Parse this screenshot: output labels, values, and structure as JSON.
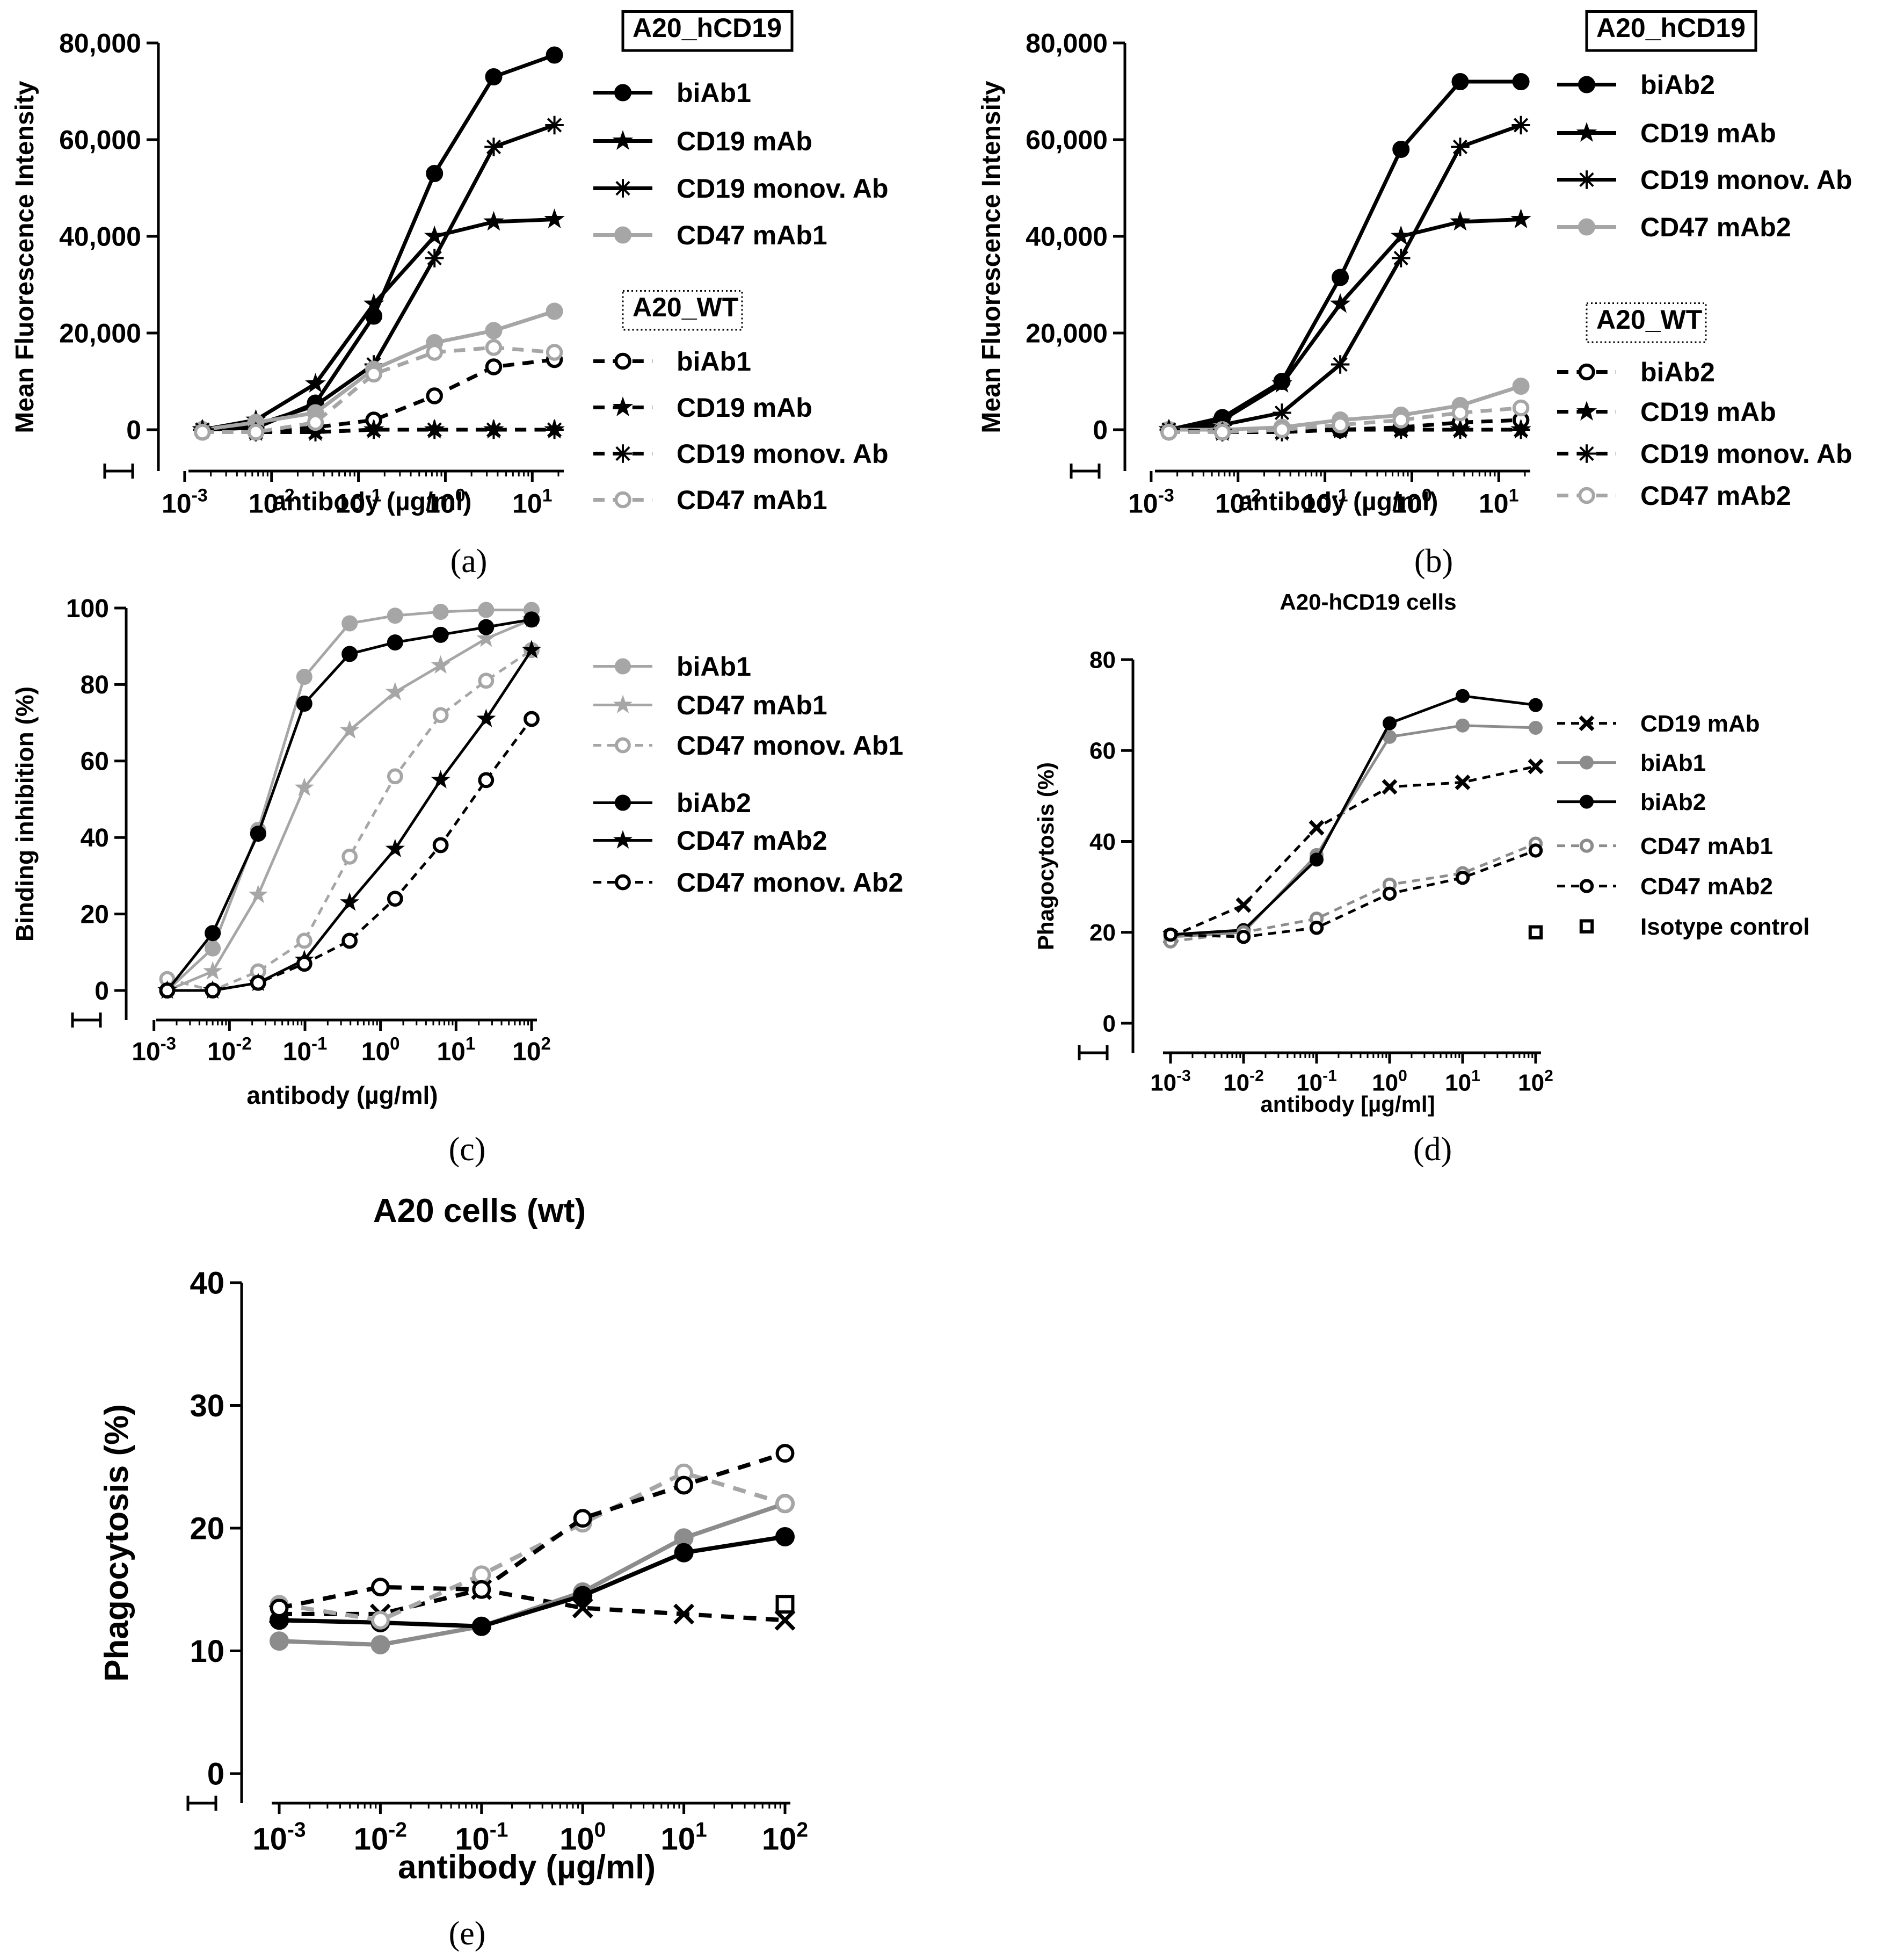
{
  "colors": {
    "black": "#000000",
    "gray": "#a6a6a6",
    "midgray": "#8c8c8c"
  },
  "chart_data": [
    {
      "panel": "a",
      "letter": "(a)",
      "type": "line",
      "xscale": "log",
      "xlabel": "antibody (µg/ml)",
      "ylabel": "Mean Fluorescence Intensity",
      "ylim": [
        0,
        80000
      ],
      "yticks": [
        "0",
        "20,000",
        "40,000",
        "60,000",
        "80,000"
      ],
      "xticks": [
        "10^-3",
        "10^-2",
        "10^-1",
        "10^0",
        "10^1"
      ],
      "legend_groups": [
        {
          "title": "A20_hCD19",
          "box": "solid"
        },
        {
          "title": "A20_WT",
          "box": "dotted"
        }
      ],
      "series": [
        {
          "name": "biAb1",
          "group": 0,
          "color": "black",
          "dash": false,
          "marker": "filled",
          "x": [
            0.0016,
            0.0066,
            0.032,
            0.15,
            0.75,
            3.6,
            18
          ],
          "values": [
            0,
            400,
            5500,
            23500,
            53000,
            73000,
            77500
          ]
        },
        {
          "name": "CD19 mAb",
          "group": 0,
          "color": "black",
          "dash": false,
          "marker": "star",
          "x": [
            0.0016,
            0.0066,
            0.032,
            0.15,
            0.75,
            3.6,
            18
          ],
          "values": [
            0,
            2000,
            9500,
            26000,
            40000,
            43000,
            43500
          ]
        },
        {
          "name": "CD19 monov. Ab",
          "group": 0,
          "color": "black",
          "dash": false,
          "marker": "asterisk",
          "x": [
            0.0016,
            0.0066,
            0.032,
            0.15,
            0.75,
            3.6,
            18
          ],
          "values": [
            0,
            1000,
            5000,
            13500,
            35500,
            58500,
            63000
          ]
        },
        {
          "name": "CD47 mAb1",
          "group": 0,
          "color": "gray",
          "dash": false,
          "marker": "filled",
          "x": [
            0.0016,
            0.0066,
            0.032,
            0.15,
            0.75,
            3.6,
            18
          ],
          "values": [
            0,
            1500,
            3500,
            12500,
            18000,
            20500,
            24500
          ]
        },
        {
          "name": "biAb1",
          "group": 1,
          "color": "black",
          "dash": true,
          "marker": "open",
          "x": [
            0.0016,
            0.0066,
            0.032,
            0.15,
            0.75,
            3.6,
            18
          ],
          "values": [
            -500,
            -500,
            500,
            2000,
            7000,
            13000,
            14500
          ]
        },
        {
          "name": "CD19 mAb",
          "group": 1,
          "color": "black",
          "dash": true,
          "marker": "star",
          "x": [
            0.0016,
            0.0066,
            0.032,
            0.15,
            0.75,
            3.6,
            18
          ],
          "values": [
            0,
            -500,
            -500,
            0,
            0,
            0,
            0
          ]
        },
        {
          "name": "CD19 monov. Ab",
          "group": 1,
          "color": "black",
          "dash": true,
          "marker": "asterisk",
          "x": [
            0.0016,
            0.0066,
            0.032,
            0.15,
            0.75,
            3.6,
            18
          ],
          "values": [
            0,
            -500,
            -500,
            0,
            0,
            0,
            0
          ]
        },
        {
          "name": "CD47 mAb1",
          "group": 1,
          "color": "gray",
          "dash": true,
          "marker": "open",
          "x": [
            0.0016,
            0.0066,
            0.032,
            0.15,
            0.75,
            3.6,
            18
          ],
          "values": [
            -500,
            -500,
            1500,
            11500,
            16000,
            17000,
            16000
          ]
        }
      ]
    },
    {
      "panel": "b",
      "letter": "(b)",
      "type": "line",
      "xscale": "log",
      "xlabel": "antibody (µg/ml)",
      "ylabel": "Mean Fluorescence Intensity",
      "ylim": [
        0,
        80000
      ],
      "yticks": [
        "0",
        "20,000",
        "40,000",
        "60,000",
        "80,000"
      ],
      "xticks": [
        "10^-3",
        "10^-2",
        "10^-1",
        "10^0",
        "10^1"
      ],
      "legend_groups": [
        {
          "title": "A20_hCD19",
          "box": "solid"
        },
        {
          "title": "A20_WT",
          "box": "dotted"
        }
      ],
      "series": [
        {
          "name": "biAb2",
          "group": 0,
          "color": "black",
          "dash": false,
          "marker": "filled",
          "x": [
            0.0016,
            0.0066,
            0.032,
            0.15,
            0.75,
            3.6,
            18
          ],
          "values": [
            0,
            2500,
            10000,
            31500,
            58000,
            72000,
            72000
          ]
        },
        {
          "name": "CD19 mAb",
          "group": 0,
          "color": "black",
          "dash": false,
          "marker": "star",
          "x": [
            0.0016,
            0.0066,
            0.032,
            0.15,
            0.75,
            3.6,
            18
          ],
          "values": [
            0,
            2000,
            9500,
            26000,
            40000,
            43000,
            43500
          ]
        },
        {
          "name": "CD19 monov. Ab",
          "group": 0,
          "color": "black",
          "dash": false,
          "marker": "asterisk",
          "x": [
            0.0016,
            0.0066,
            0.032,
            0.15,
            0.75,
            3.6,
            18
          ],
          "values": [
            0,
            1000,
            3500,
            13500,
            35500,
            58500,
            63000
          ]
        },
        {
          "name": "CD47 mAb2",
          "group": 0,
          "color": "gray",
          "dash": false,
          "marker": "filled",
          "x": [
            0.0016,
            0.0066,
            0.032,
            0.15,
            0.75,
            3.6,
            18
          ],
          "values": [
            0,
            0,
            500,
            2000,
            3000,
            5000,
            9000
          ]
        },
        {
          "name": "biAb2",
          "group": 1,
          "color": "black",
          "dash": true,
          "marker": "open",
          "x": [
            0.0016,
            0.0066,
            0.032,
            0.15,
            0.75,
            3.6,
            18
          ],
          "values": [
            -500,
            -500,
            0,
            0,
            500,
            1500,
            2000
          ]
        },
        {
          "name": "CD19 mAb",
          "group": 1,
          "color": "black",
          "dash": true,
          "marker": "star",
          "x": [
            0.0016,
            0.0066,
            0.032,
            0.15,
            0.75,
            3.6,
            18
          ],
          "values": [
            0,
            -500,
            -500,
            0,
            0,
            0,
            0
          ]
        },
        {
          "name": "CD19 monov. Ab",
          "group": 1,
          "color": "black",
          "dash": true,
          "marker": "asterisk",
          "x": [
            0.0016,
            0.0066,
            0.032,
            0.15,
            0.75,
            3.6,
            18
          ],
          "values": [
            0,
            -500,
            -500,
            0,
            0,
            0,
            0
          ]
        },
        {
          "name": "CD47 mAb2",
          "group": 1,
          "color": "gray",
          "dash": true,
          "marker": "open",
          "x": [
            0.0016,
            0.0066,
            0.032,
            0.15,
            0.75,
            3.6,
            18
          ],
          "values": [
            -500,
            -500,
            0,
            1000,
            2000,
            3500,
            4500
          ]
        }
      ]
    },
    {
      "panel": "c",
      "letter": "(c)",
      "type": "line",
      "xscale": "log",
      "xlabel": "antibody (µg/ml)",
      "ylabel": "Binding inhibition (%)",
      "ylim": [
        0,
        100
      ],
      "yticks": [
        "0",
        "20",
        "40",
        "60",
        "80",
        "100"
      ],
      "xticks": [
        "10^-3",
        "10^-2",
        "10^-1",
        "10^0",
        "10^1",
        "10^2"
      ],
      "legend_groups": [],
      "series": [
        {
          "name": "biAb1",
          "group": 0,
          "color": "gray",
          "dash": false,
          "marker": "filled",
          "x": [
            0.0015,
            0.006,
            0.024,
            0.098,
            0.39,
            1.56,
            6.25,
            25,
            100
          ],
          "values": [
            0,
            11,
            42,
            82,
            96,
            98,
            99,
            99.5,
            99.5
          ]
        },
        {
          "name": "CD47 mAb1",
          "group": 0,
          "color": "gray",
          "dash": false,
          "marker": "star",
          "x": [
            0.0015,
            0.006,
            0.024,
            0.098,
            0.39,
            1.56,
            6.25,
            25,
            100
          ],
          "values": [
            0,
            5,
            25,
            53,
            68,
            78,
            85,
            92,
            97
          ]
        },
        {
          "name": "CD47 monov. Ab1",
          "group": 0,
          "color": "gray",
          "dash": true,
          "marker": "open",
          "x": [
            0.0015,
            0.006,
            0.024,
            0.098,
            0.39,
            1.56,
            6.25,
            25,
            100
          ],
          "values": [
            3,
            0,
            5,
            13,
            35,
            56,
            72,
            81,
            89
          ]
        },
        {
          "name": "biAb2",
          "group": 1,
          "color": "black",
          "dash": false,
          "marker": "filled",
          "x": [
            0.0015,
            0.006,
            0.024,
            0.098,
            0.39,
            1.56,
            6.25,
            25,
            100
          ],
          "values": [
            0,
            15,
            41,
            75,
            88,
            91,
            93,
            95,
            97
          ]
        },
        {
          "name": "CD47 mAb2",
          "group": 1,
          "color": "black",
          "dash": false,
          "marker": "star",
          "x": [
            0.0015,
            0.006,
            0.024,
            0.098,
            0.39,
            1.56,
            6.25,
            25,
            100
          ],
          "values": [
            0,
            0,
            2,
            8,
            23,
            37,
            55,
            71,
            89
          ]
        },
        {
          "name": "CD47 monov. Ab2",
          "group": 1,
          "color": "black",
          "dash": true,
          "marker": "open",
          "x": [
            0.0015,
            0.006,
            0.024,
            0.098,
            0.39,
            1.56,
            6.25,
            25,
            100
          ],
          "values": [
            0,
            0,
            2,
            7,
            13,
            24,
            38,
            55,
            71
          ]
        }
      ]
    },
    {
      "panel": "d",
      "letter": "(d)",
      "type": "line",
      "xscale": "log",
      "title": "A20-hCD19 cells",
      "xlabel": "antibody [µg/ml]",
      "ylabel": "Phagocytosis (%)",
      "ylim": [
        0,
        80
      ],
      "yticks": [
        "0",
        "20",
        "40",
        "60",
        "80"
      ],
      "xticks": [
        "10^-3",
        "10^-2",
        "10^-1",
        "10^0",
        "10^1",
        "10^2"
      ],
      "legend_groups": [],
      "series": [
        {
          "name": "CD19 mAb",
          "color": "black",
          "dash": true,
          "marker": "x",
          "x": [
            0.001,
            0.01,
            0.1,
            1,
            10,
            100
          ],
          "values": [
            19,
            26,
            43,
            52,
            53,
            56.5
          ]
        },
        {
          "name": "biAb1",
          "color": "midgray",
          "dash": false,
          "marker": "filled",
          "x": [
            0.001,
            0.01,
            0.1,
            1,
            10,
            100
          ],
          "values": [
            19,
            20,
            37,
            63,
            65.5,
            65
          ]
        },
        {
          "name": "biAb2",
          "color": "black",
          "dash": false,
          "marker": "filled",
          "x": [
            0.001,
            0.01,
            0.1,
            1,
            10,
            100
          ],
          "values": [
            19.5,
            20.5,
            36,
            66,
            72,
            70
          ]
        },
        {
          "name": "CD47 mAb1",
          "color": "midgray",
          "dash": true,
          "marker": "open",
          "x": [
            0.001,
            0.01,
            0.1,
            1,
            10,
            100
          ],
          "values": [
            18,
            20,
            23,
            30.5,
            33,
            39.5
          ]
        },
        {
          "name": "CD47 mAb2",
          "color": "black",
          "dash": true,
          "marker": "open",
          "x": [
            0.001,
            0.01,
            0.1,
            1,
            10,
            100
          ],
          "values": [
            19.5,
            19,
            21,
            28.5,
            32,
            38
          ]
        },
        {
          "name": "Isotype control",
          "color": "black",
          "dash": false,
          "marker": "square",
          "x": [
            100
          ],
          "values": [
            20
          ]
        }
      ]
    },
    {
      "panel": "e",
      "letter": "(e)",
      "type": "line",
      "xscale": "log",
      "title": "A20 cells (wt)",
      "xlabel": "antibody (µg/ml)",
      "ylabel": "Phagocytosis (%)",
      "ylim": [
        0,
        40
      ],
      "yticks": [
        "0",
        "10",
        "20",
        "30",
        "40"
      ],
      "xticks": [
        "10^-3",
        "10^-2",
        "10^-1",
        "10^0",
        "10^1",
        "10^2"
      ],
      "legend_groups": [],
      "series": [
        {
          "name": "CD19 mAb",
          "color": "black",
          "dash": true,
          "marker": "x",
          "x": [
            0.001,
            0.01,
            0.1,
            1,
            10,
            100
          ],
          "values": [
            13,
            13,
            15,
            13.5,
            13,
            12.5
          ]
        },
        {
          "name": "biAb1",
          "color": "midgray",
          "dash": false,
          "marker": "filled",
          "x": [
            0.001,
            0.01,
            0.1,
            1,
            10,
            100
          ],
          "values": [
            10.8,
            10.5,
            12,
            14.8,
            19.2,
            22
          ]
        },
        {
          "name": "biAb2",
          "color": "black",
          "dash": false,
          "marker": "filled",
          "x": [
            0.001,
            0.01,
            0.1,
            1,
            10,
            100
          ],
          "values": [
            12.5,
            12.3,
            12,
            14.5,
            18,
            19.3
          ]
        },
        {
          "name": "CD47 mAb1",
          "color": "gray",
          "dash": true,
          "marker": "open",
          "x": [
            0.001,
            0.01,
            0.1,
            1,
            10,
            100
          ],
          "values": [
            13.8,
            12.5,
            16.2,
            20.4,
            24.5,
            22
          ]
        },
        {
          "name": "CD47 mAb2",
          "color": "black",
          "dash": true,
          "marker": "open",
          "x": [
            0.001,
            0.01,
            0.1,
            1,
            10,
            100
          ],
          "values": [
            13.5,
            15.2,
            15,
            20.8,
            23.5,
            26.1
          ]
        },
        {
          "name": "Isotype control",
          "color": "black",
          "dash": false,
          "marker": "square",
          "x": [
            100
          ],
          "values": [
            13.8
          ]
        }
      ]
    }
  ]
}
